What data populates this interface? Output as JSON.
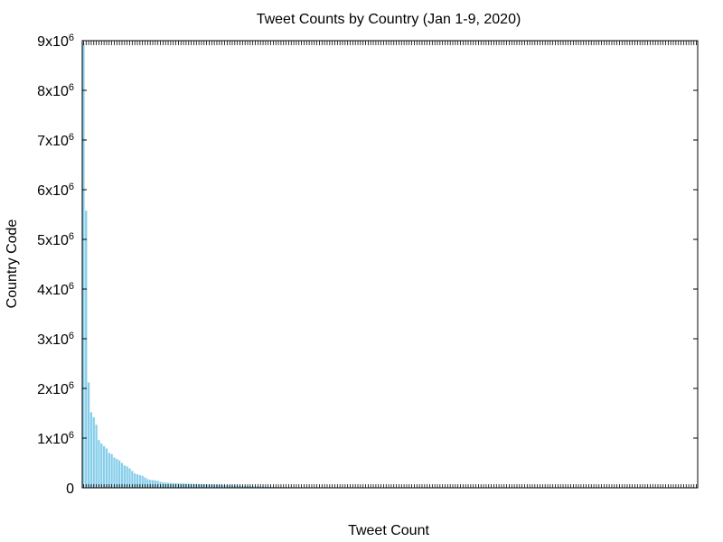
{
  "chart_data": {
    "type": "bar",
    "title": "Tweet Counts by Country (Jan 1-9, 2020)",
    "xlabel": "Tweet Count",
    "ylabel": "Country Code",
    "ylim": [
      0,
      9000000
    ],
    "yticks": [
      {
        "value": 0,
        "base": "0",
        "exp": ""
      },
      {
        "value": 1000000,
        "base": "1x10",
        "exp": "6"
      },
      {
        "value": 2000000,
        "base": "2x10",
        "exp": "6"
      },
      {
        "value": 3000000,
        "base": "3x10",
        "exp": "6"
      },
      {
        "value": 4000000,
        "base": "4x10",
        "exp": "6"
      },
      {
        "value": 5000000,
        "base": "5x10",
        "exp": "6"
      },
      {
        "value": 6000000,
        "base": "6x10",
        "exp": "6"
      },
      {
        "value": 7000000,
        "base": "7x10",
        "exp": "6"
      },
      {
        "value": 8000000,
        "base": "8x10",
        "exp": "6"
      },
      {
        "value": 9000000,
        "base": "9x10",
        "exp": "6"
      }
    ],
    "bar_count": 240,
    "categories_legible": false,
    "values": [
      8950000,
      5580000,
      2120000,
      1520000,
      1420000,
      1270000,
      960000,
      890000,
      840000,
      790000,
      700000,
      680000,
      610000,
      580000,
      550000,
      500000,
      450000,
      430000,
      390000,
      340000,
      290000,
      270000,
      255000,
      240000,
      210000,
      175000,
      160000,
      155000,
      150000,
      140000,
      120000,
      110000,
      105000,
      100000,
      98000,
      95000,
      92000,
      90000,
      88000,
      86000,
      84000,
      82000,
      80000,
      78000,
      76000,
      74000,
      72000,
      70000,
      68000,
      66000,
      64000,
      62000,
      60000,
      58000,
      56000,
      54000,
      52000,
      50000,
      48000,
      46000,
      44000,
      42000,
      40000,
      38000,
      36000,
      34000,
      32000,
      30000,
      28000,
      26000,
      24000,
      22000,
      20000,
      19000,
      18000,
      17000,
      16000,
      15000,
      14000,
      13000,
      12000,
      11000,
      10000,
      9500,
      9000,
      8500,
      8000,
      7500,
      7000,
      6500,
      6000,
      5500,
      5000,
      4800,
      4600,
      4400,
      4200,
      4000,
      3800,
      3600,
      3400,
      3200,
      3000,
      2800,
      2600,
      2400,
      2200,
      2000,
      1900,
      1800,
      1700,
      1600,
      1500,
      1400,
      1300,
      1200,
      1100,
      1000,
      950,
      900,
      850,
      800,
      750,
      700,
      650,
      600,
      550,
      500,
      480,
      460,
      440,
      420,
      400,
      380,
      360,
      340,
      320,
      300,
      280,
      260,
      240,
      220,
      200,
      190,
      180,
      170,
      160,
      150,
      140,
      130,
      120,
      110,
      100,
      95,
      90,
      85,
      80,
      75,
      70,
      65,
      60,
      55,
      50,
      48,
      46,
      44,
      42,
      40,
      38,
      36,
      34,
      32,
      30,
      28,
      26,
      24,
      22,
      20,
      19,
      18,
      17,
      16,
      15,
      14,
      13,
      12,
      11,
      10,
      10,
      9,
      9,
      8,
      8,
      7,
      7,
      6,
      6,
      5,
      5,
      5,
      4,
      4,
      4,
      3,
      3,
      3,
      3,
      2,
      2,
      2,
      2,
      2,
      2,
      1,
      1,
      1,
      1,
      1,
      1,
      1,
      1,
      1,
      1,
      1,
      1,
      1,
      1,
      1,
      1,
      1,
      1,
      1,
      1,
      1,
      1,
      1,
      1,
      1,
      1,
      1
    ],
    "bar_color": "#87ceeb",
    "grid": false,
    "legend": "none"
  }
}
